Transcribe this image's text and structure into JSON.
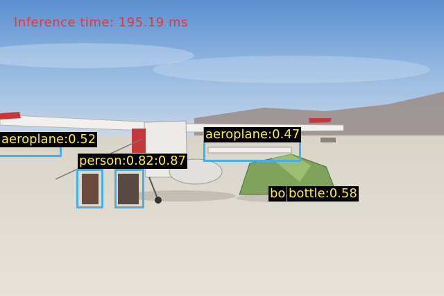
{
  "overlay": {
    "inference_text": "Inference time: 195.19 ms"
  },
  "detections": [
    {
      "label": "aeroplane:0.52"
    },
    {
      "label": "aeroplane:0.47"
    },
    {
      "label": "person:0.82:0.87"
    },
    {
      "label": "bo"
    },
    {
      "label": "bottle:0.58"
    }
  ],
  "colors": {
    "box": "#3fb0f0",
    "label_text": "#ffe94a",
    "label_bg": "#000000",
    "inference_text": "#e8343a"
  }
}
